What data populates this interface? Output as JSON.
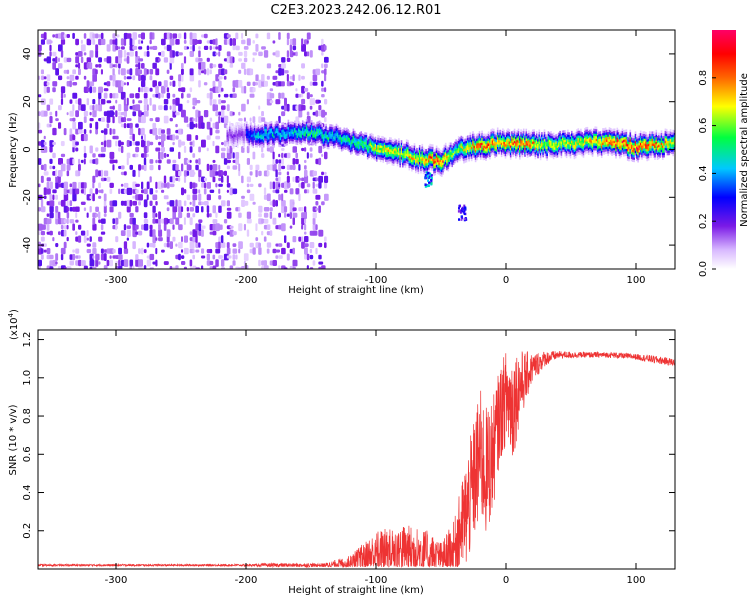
{
  "title": "C2E3.2023.242.06.12.R01",
  "chart_data": [
    {
      "type": "heatmap",
      "xlabel": "Height of straight line (km)",
      "ylabel": "Frequency (Hz)",
      "xlim": [
        -360,
        130
      ],
      "ylim": [
        -50,
        50
      ],
      "xticks": [
        -300,
        -200,
        -100,
        0,
        100
      ],
      "yticks": [
        -40,
        -20,
        0,
        20,
        40
      ],
      "colorbar": {
        "label": "Normalized spectral amplitude",
        "range": [
          0,
          1
        ],
        "ticks": [
          0.0,
          0.2,
          0.4,
          0.6,
          0.8
        ],
        "colors": [
          "#ffffff",
          "#8a2be2",
          "#0000ff",
          "#00ffff",
          "#00ff00",
          "#ffff00",
          "#ff0000",
          "#ff0066"
        ]
      },
      "noise_region": {
        "x_range": [
          -360,
          -140
        ],
        "gap": [
          -210,
          -180
        ],
        "amplitude": 0.25
      },
      "ridge": [
        {
          "x": -200,
          "y": 6,
          "amp": 0.35
        },
        {
          "x": -185,
          "y": 6,
          "amp": 0.5
        },
        {
          "x": -170,
          "y": 7,
          "amp": 0.45
        },
        {
          "x": -150,
          "y": 7,
          "amp": 0.55
        },
        {
          "x": -130,
          "y": 5,
          "amp": 0.5
        },
        {
          "x": -110,
          "y": 2,
          "amp": 0.6
        },
        {
          "x": -95,
          "y": 0,
          "amp": 0.75
        },
        {
          "x": -80,
          "y": -2,
          "amp": 0.7
        },
        {
          "x": -65,
          "y": -4,
          "amp": 0.8
        },
        {
          "x": -50,
          "y": -5,
          "amp": 0.9
        },
        {
          "x": -40,
          "y": -1,
          "amp": 0.6
        },
        {
          "x": -30,
          "y": 1,
          "amp": 0.75
        },
        {
          "x": -20,
          "y": 1,
          "amp": 0.9
        },
        {
          "x": -5,
          "y": 3,
          "amp": 0.8
        },
        {
          "x": 10,
          "y": 2,
          "amp": 0.9
        },
        {
          "x": 30,
          "y": 2,
          "amp": 0.7
        },
        {
          "x": 60,
          "y": 3,
          "amp": 0.75
        },
        {
          "x": 85,
          "y": 3,
          "amp": 0.9
        },
        {
          "x": 100,
          "y": 1,
          "amp": 0.95
        },
        {
          "x": 130,
          "y": 3,
          "amp": 0.7
        }
      ],
      "blobs": [
        {
          "x": -60,
          "y": -12,
          "amp": 0.45
        },
        {
          "x": -34,
          "y": -26,
          "amp": 0.3
        }
      ]
    },
    {
      "type": "line",
      "xlabel": "Height of straight line (km)",
      "ylabel": "SNR (10 * v/v)",
      "multiplier_label": "(x10",
      "multiplier_exp": "4",
      "multiplier_close": ")",
      "xlim": [
        -360,
        130
      ],
      "ylim": [
        0,
        1.25
      ],
      "xticks": [
        -300,
        -200,
        -100,
        0,
        100
      ],
      "yticks": [
        0.2,
        0.4,
        0.6,
        0.8,
        1.0,
        1.2
      ],
      "color": "#ee3333",
      "envelope": {
        "x": [
          -360,
          -200,
          -180,
          -140,
          -120,
          -100,
          -80,
          -60,
          -50,
          -40,
          -30,
          -20,
          -15,
          -10,
          -5,
          0,
          5,
          10,
          20,
          30,
          40,
          60,
          80,
          100,
          110,
          130
        ],
        "base": [
          0.02,
          0.02,
          0.02,
          0.02,
          0.03,
          0.08,
          0.1,
          0.08,
          0.06,
          0.1,
          0.3,
          0.6,
          0.5,
          0.6,
          0.8,
          0.9,
          0.85,
          0.95,
          1.05,
          1.1,
          1.12,
          1.12,
          1.12,
          1.11,
          1.1,
          1.08
        ],
        "noise": [
          0.005,
          0.005,
          0.01,
          0.01,
          0.04,
          0.12,
          0.14,
          0.12,
          0.08,
          0.15,
          0.3,
          0.35,
          0.35,
          0.3,
          0.25,
          0.25,
          0.3,
          0.2,
          0.08,
          0.04,
          0.02,
          0.015,
          0.015,
          0.015,
          0.02,
          0.02
        ]
      }
    }
  ]
}
